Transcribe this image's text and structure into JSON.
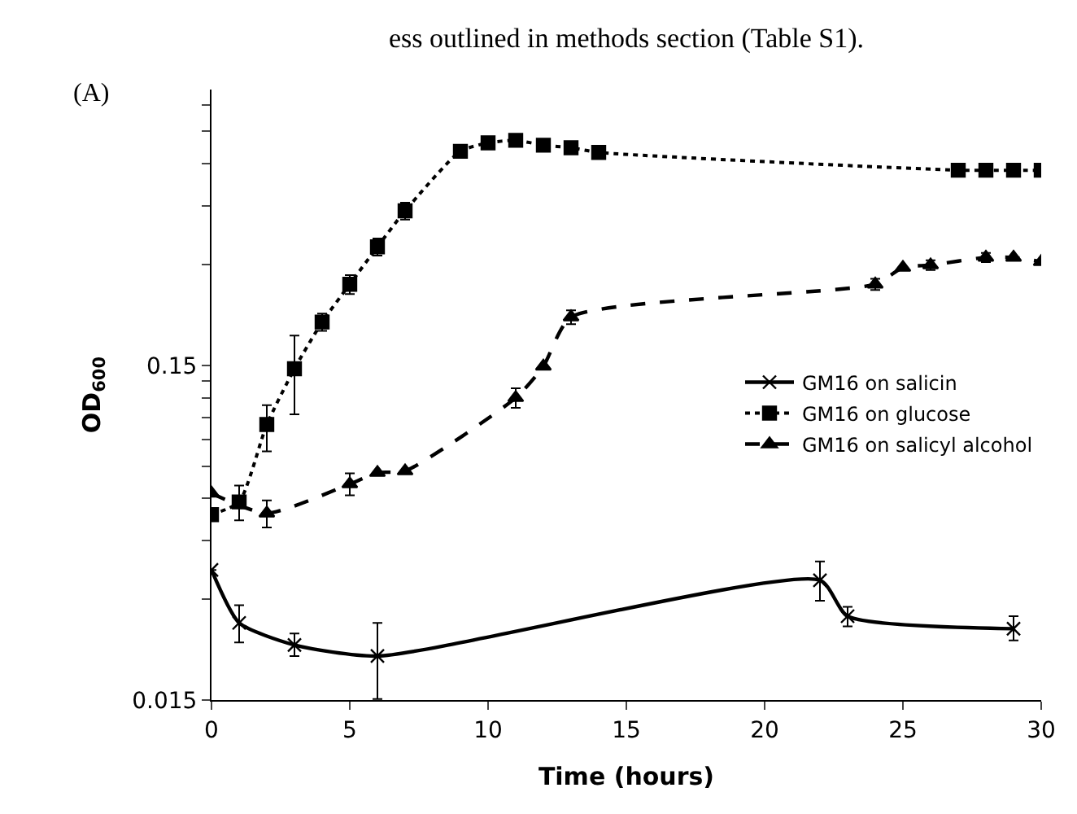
{
  "chart_data": {
    "type": "line",
    "xlabel": "Time (hours)",
    "ylabel": "OD$_{600}$",
    "log": "y",
    "legend": "right",
    "annotations": [
      "ess outlined in methods section (Table S1).",
      "(A)"
    ],
    "xlim": [
      0,
      30
    ],
    "xticks": [
      0,
      5,
      10,
      15,
      20,
      25,
      30
    ],
    "ylim": [
      0.015,
      1.0
    ],
    "yticks": [
      0.015,
      {
        "value": 0.03,
        "label": null
      },
      {
        "value": 0.045,
        "label": null
      },
      {
        "value": 0.06,
        "label": null
      },
      {
        "value": 0.075,
        "label": null
      },
      {
        "value": 0.09,
        "label": null
      },
      {
        "value": 0.105,
        "label": null
      },
      {
        "value": 0.12,
        "label": null
      },
      {
        "value": 0.135,
        "label": null
      },
      0.15,
      {
        "value": 0.3,
        "label": null
      },
      {
        "value": 0.45,
        "label": null
      },
      {
        "value": 0.6,
        "label": null
      },
      {
        "value": 0.75,
        "label": null
      },
      {
        "value": 0.9,
        "label": null
      }
    ],
    "series": [
      {
        "name": "GM16 on salicin",
        "color": "#000000",
        "marker": "cross",
        "line_style": "solid",
        "x": [
          0,
          1,
          3,
          6,
          22,
          23,
          29
        ],
        "values": [
          0.0367,
          0.0255,
          0.0219,
          0.0203,
          0.0342,
          0.0267,
          0.0245
        ],
        "errors": [
          null,
          [
            0.0223,
            0.0288
          ],
          [
            0.0203,
            0.0237
          ],
          [
            0.0151,
            0.0255
          ],
          [
            0.0297,
            0.0389
          ],
          [
            0.0249,
            0.0285
          ],
          [
            0.0226,
            0.0267
          ]
        ]
      },
      {
        "name": "GM16 on glucose",
        "color": "#000000",
        "marker": "square",
        "line_style": "dotted",
        "x": [
          0,
          1,
          2,
          3,
          4,
          5,
          6,
          7,
          9,
          10,
          11,
          12,
          13,
          14,
          27,
          28,
          29,
          30
        ],
        "values": [
          0.0537,
          0.0586,
          0.0998,
          0.1465,
          0.202,
          0.262,
          0.339,
          0.434,
          0.654,
          0.693,
          0.705,
          0.682,
          0.67,
          0.649,
          0.574,
          0.574,
          0.574,
          0.574
        ],
        "errors": [
          null,
          0.007,
          [
            0.083,
            0.114
          ],
          [
            0.107,
            0.184
          ],
          0.012,
          0.017,
          0.02,
          0.025,
          null,
          null,
          null,
          null,
          null,
          null,
          null,
          null,
          null,
          null
        ]
      },
      {
        "name": "GM16 on salicyl alcohol",
        "color": "#000000",
        "marker": "triangle",
        "line_style": "dashed",
        "x": [
          0,
          2,
          5,
          6,
          7,
          11,
          12,
          13,
          24,
          25,
          26,
          28,
          29,
          30
        ],
        "values": [
          0.0622,
          0.0542,
          0.0663,
          0.0717,
          0.0725,
          0.12,
          0.149,
          0.209,
          0.262,
          0.294,
          0.299,
          0.315,
          0.315,
          0.306
        ],
        "errors": [
          null,
          0.005,
          0.005,
          null,
          null,
          0.008,
          null,
          0.01,
          0.01,
          null,
          0.01,
          0.01,
          null,
          null
        ]
      }
    ]
  }
}
